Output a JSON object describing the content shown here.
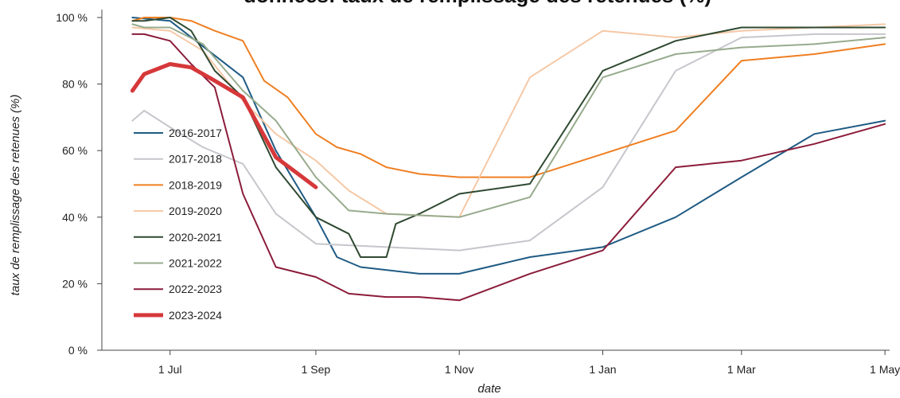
{
  "chart_data": {
    "type": "line",
    "title": "données: taux de remplissage des retenues (%)",
    "xlabel": "date",
    "ylabel": "taux de remplissage des retenues (%)",
    "ylim": [
      0,
      100
    ],
    "yticks": [
      "0 %",
      "20 %",
      "40 %",
      "60 %",
      "80 %",
      "100 %"
    ],
    "ytick_values": [
      0,
      20,
      40,
      60,
      80,
      100
    ],
    "xlim": [
      "2000-06-02",
      "2001-05-03"
    ],
    "xticks": [
      "1 Jul",
      "1 Sep",
      "1 Nov",
      "1 Jan",
      "1 Mar",
      "1 May"
    ],
    "xtick_dates": [
      "2000-07-01",
      "2000-09-01",
      "2000-11-01",
      "2001-01-01",
      "2001-03-01",
      "2001-05-01"
    ],
    "grid": false,
    "legend_position": "left",
    "series": [
      {
        "name": "2016-2017",
        "color": "#1f5b84",
        "x": [
          "2000-06-15",
          "2000-07-01",
          "2000-08-01",
          "2000-08-15",
          "2000-09-01",
          "2000-09-10",
          "2000-09-20",
          "2000-10-15",
          "2000-11-01",
          "2000-12-01",
          "2001-01-01",
          "2001-02-01",
          "2001-03-01",
          "2001-04-01",
          "2001-05-01"
        ],
        "y": [
          100,
          99,
          82,
          60,
          40,
          28,
          25,
          23,
          23,
          28,
          31,
          40,
          52,
          65,
          69
        ]
      },
      {
        "name": "2017-2018",
        "color": "#c6c6cc",
        "x": [
          "2000-06-15",
          "2000-06-20",
          "2000-07-01",
          "2000-07-15",
          "2000-08-01",
          "2000-08-15",
          "2000-09-01",
          "2000-10-01",
          "2000-11-01",
          "2000-12-01",
          "2001-01-01",
          "2001-02-01",
          "2001-03-01",
          "2001-04-01",
          "2001-05-01"
        ],
        "y": [
          69,
          72,
          67,
          61,
          56,
          41,
          32,
          31,
          30,
          33,
          49,
          84,
          94,
          95,
          95
        ]
      },
      {
        "name": "2018-2019",
        "color": "#ef7f22",
        "x": [
          "2000-06-15",
          "2000-06-20",
          "2000-07-01",
          "2000-07-10",
          "2000-07-20",
          "2000-08-01",
          "2000-08-10",
          "2000-08-20",
          "2000-09-01",
          "2000-09-10",
          "2000-09-20",
          "2000-10-01",
          "2000-10-15",
          "2000-11-01",
          "2000-12-01",
          "2001-01-01",
          "2001-02-01",
          "2001-03-01",
          "2001-04-01",
          "2001-05-01"
        ],
        "y": [
          99,
          100,
          100,
          99,
          96,
          93,
          81,
          76,
          65,
          61,
          59,
          55,
          53,
          52,
          52,
          59,
          66,
          87,
          89,
          92
        ]
      },
      {
        "name": "2019-2020",
        "color": "#f5c8a6",
        "x": [
          "2000-06-15",
          "2000-07-01",
          "2000-07-15",
          "2000-08-01",
          "2000-08-15",
          "2000-09-01",
          "2000-09-15",
          "2000-10-01",
          "2000-11-01",
          "2000-12-01",
          "2001-01-01",
          "2001-02-01",
          "2001-03-01",
          "2001-04-01",
          "2001-05-01"
        ],
        "y": [
          97,
          96,
          90,
          75,
          65,
          57,
          48,
          41,
          40,
          82,
          96,
          94,
          96,
          97,
          98
        ]
      },
      {
        "name": "2020-2021",
        "color": "#2f4a31",
        "x": [
          "2000-06-15",
          "2000-06-20",
          "2000-07-01",
          "2000-07-10",
          "2000-07-20",
          "2000-08-01",
          "2000-08-15",
          "2000-09-01",
          "2000-09-15",
          "2000-09-20",
          "2000-10-01",
          "2000-10-05",
          "2000-10-15",
          "2000-11-01",
          "2000-12-01",
          "2001-01-01",
          "2001-02-01",
          "2001-03-01",
          "2001-04-01",
          "2001-05-01"
        ],
        "y": [
          99,
          99,
          100,
          96,
          84,
          76,
          55,
          40,
          35,
          28,
          28,
          38,
          41,
          47,
          50,
          84,
          93,
          97,
          97,
          97
        ]
      },
      {
        "name": "2021-2022",
        "color": "#97ab8d",
        "x": [
          "2000-06-15",
          "2000-06-20",
          "2000-07-01",
          "2000-07-15",
          "2000-08-01",
          "2000-08-15",
          "2000-09-01",
          "2000-09-15",
          "2000-10-01",
          "2000-11-01",
          "2000-12-01",
          "2001-01-01",
          "2001-02-01",
          "2001-03-01",
          "2001-04-01",
          "2001-05-01"
        ],
        "y": [
          98,
          97,
          97,
          92,
          78,
          69,
          52,
          42,
          41,
          40,
          46,
          82,
          89,
          91,
          92,
          94
        ]
      },
      {
        "name": "2022-2023",
        "color": "#8b1c3a",
        "x": [
          "2000-06-15",
          "2000-06-20",
          "2000-07-01",
          "2000-07-10",
          "2000-07-20",
          "2000-08-01",
          "2000-08-15",
          "2000-09-01",
          "2000-09-15",
          "2000-10-01",
          "2000-10-15",
          "2000-11-01",
          "2000-12-01",
          "2001-01-01",
          "2001-02-01",
          "2001-03-01",
          "2001-04-01",
          "2001-05-01"
        ],
        "y": [
          95,
          95,
          93,
          86,
          79,
          47,
          25,
          22,
          17,
          16,
          16,
          15,
          23,
          30,
          55,
          57,
          62,
          68
        ]
      },
      {
        "name": "2023-2024",
        "color": "#d6383a",
        "x": [
          "2000-06-15",
          "2000-06-20",
          "2000-07-01",
          "2000-07-10",
          "2000-07-20",
          "2000-08-01",
          "2000-08-15",
          "2000-09-01"
        ],
        "y": [
          78,
          83,
          86,
          85,
          81,
          76,
          58,
          49
        ]
      }
    ]
  }
}
